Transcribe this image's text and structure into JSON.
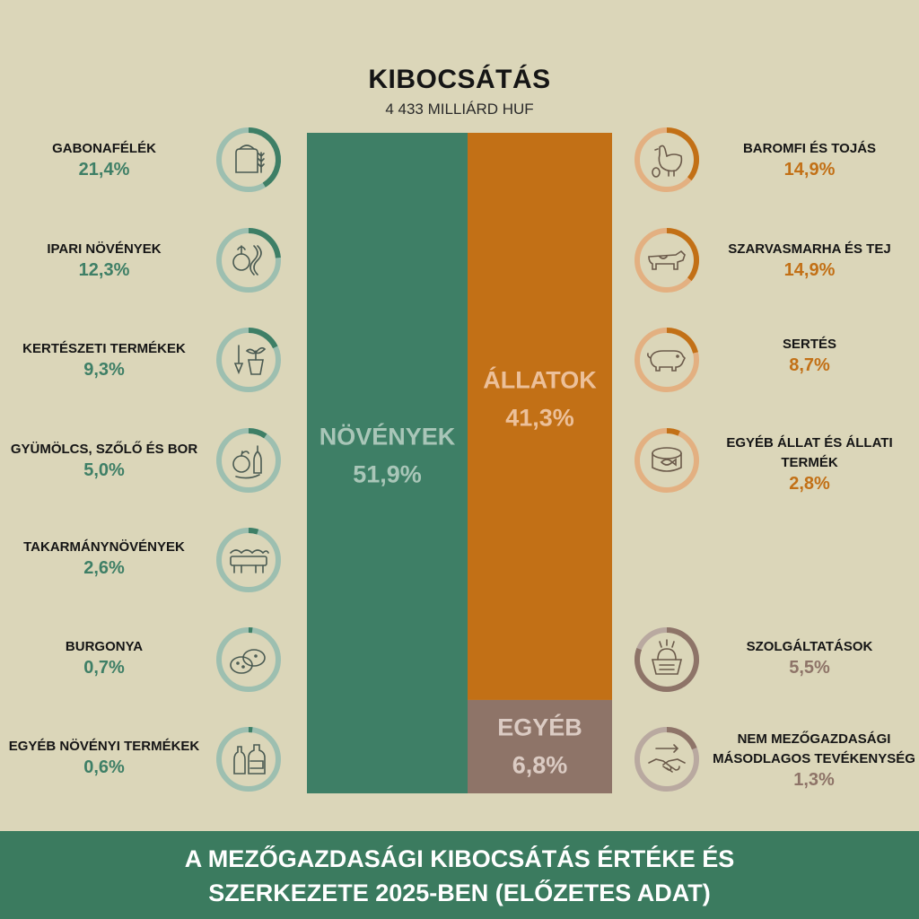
{
  "header": {
    "title": "KIBOCSÁTÁS",
    "subtitle": "4 433 MILLIÁRD HUF"
  },
  "chart_data": {
    "type": "bar",
    "title": "KIBOCSÁTÁS",
    "subtitle": "4 433 MILLIÁRD HUF",
    "stacked_100": true,
    "main_groups": [
      {
        "name": "NÖVÉNYEK",
        "value": 51.9,
        "value_label": "51,9%",
        "color": "#3e7f66",
        "text_color": "#a9c6b8"
      },
      {
        "name": "ÁLLATOK",
        "value": 41.3,
        "value_label": "41,3%",
        "color": "#c27016",
        "text_color": "#ecc09a"
      },
      {
        "name": "EGYÉB",
        "value": 6.8,
        "value_label": "6,8%",
        "color": "#8e7468",
        "text_color": "#dbcbc3"
      }
    ],
    "subcategories": [
      {
        "group": "NÖVÉNYEK",
        "name": "GABONAFÉLÉK",
        "value": 21.4,
        "value_label": "21,4%",
        "icon": "wheat-sack-icon"
      },
      {
        "group": "NÖVÉNYEK",
        "name": "IPARI NÖVÉNYEK",
        "value": 12.3,
        "value_label": "12,3%",
        "icon": "industrial-plants-icon"
      },
      {
        "group": "NÖVÉNYEK",
        "name": "KERTÉSZETI TERMÉKEK",
        "value": 9.3,
        "value_label": "9,3%",
        "icon": "seedling-pot-icon"
      },
      {
        "group": "NÖVÉNYEK",
        "name": "GYÜMÖLCS, SZŐLŐ ÉS BOR",
        "value": 5.0,
        "value_label": "5,0%",
        "icon": "fruit-wine-icon"
      },
      {
        "group": "NÖVÉNYEK",
        "name": "TAKARMÁNYNÖVÉNYEK",
        "value": 2.6,
        "value_label": "2,6%",
        "icon": "feed-trough-icon"
      },
      {
        "group": "NÖVÉNYEK",
        "name": "BURGONYA",
        "value": 0.7,
        "value_label": "0,7%",
        "icon": "potato-icon"
      },
      {
        "group": "NÖVÉNYEK",
        "name": "EGYÉB NÖVÉNYI TERMÉKEK",
        "value": 0.6,
        "value_label": "0,6%",
        "icon": "bottles-icon"
      },
      {
        "group": "ÁLLATOK",
        "name": "BAROMFI ÉS TOJÁS",
        "value": 14.9,
        "value_label": "14,9%",
        "icon": "chicken-egg-icon"
      },
      {
        "group": "ÁLLATOK",
        "name": "SZARVASMARHA ÉS TEJ",
        "value": 14.9,
        "value_label": "14,9%",
        "icon": "cow-icon"
      },
      {
        "group": "ÁLLATOK",
        "name": "SERTÉS",
        "value": 8.7,
        "value_label": "8,7%",
        "icon": "pig-icon"
      },
      {
        "group": "ÁLLATOK",
        "name": "EGYÉB ÁLLAT ÉS ÁLLATI TERMÉK",
        "value": 2.8,
        "value_label": "2,8%",
        "icon": "fish-can-icon"
      },
      {
        "group": "EGYÉB",
        "name": "SZOLGÁLTATÁSOK",
        "value": 5.5,
        "value_label": "5,5%",
        "icon": "basket-icon"
      },
      {
        "group": "EGYÉB",
        "name": "NEM MEZŐGAZDASÁGI MÁSODLAGOS TEVÉKENYSÉG",
        "value": 1.3,
        "value_label": "1,3%",
        "icon": "handshake-icon"
      }
    ]
  },
  "labels": {
    "left": [
      {
        "name": "GABONAFÉLÉK",
        "pct": "21,4%"
      },
      {
        "name": "IPARI NÖVÉNYEK",
        "pct": "12,3%"
      },
      {
        "name": "KERTÉSZETI TERMÉKEK",
        "pct": "9,3%"
      },
      {
        "name": "GYÜMÖLCS, SZŐLŐ ÉS BOR",
        "pct": "5,0%"
      },
      {
        "name": "TAKARMÁNYNÖVÉNYEK",
        "pct": "2,6%"
      },
      {
        "name": "BURGONYA",
        "pct": "0,7%"
      },
      {
        "name": "EGYÉB NÖVÉNYI TERMÉKEK",
        "pct": "0,6%"
      }
    ],
    "right": [
      {
        "name": "BAROMFI ÉS TOJÁS",
        "pct": "14,9%"
      },
      {
        "name": "SZARVASMARHA ÉS TEJ",
        "pct": "14,9%"
      },
      {
        "name": "SERTÉS",
        "pct": "8,7%"
      },
      {
        "name1": "EGYÉB ÁLLAT ÉS ÁLLATI",
        "name2": "TERMÉK",
        "pct": "2,8%"
      },
      {
        "name": "SZOLGÁLTATÁSOK",
        "pct": "5,5%"
      },
      {
        "name1": "NEM MEZŐGAZDASÁGI",
        "name2": "MÁSODLAGOS TEVÉKENYSÉG",
        "pct": "1,3%"
      }
    ]
  },
  "colors": {
    "background": "#dbd6b9",
    "plants_text": "#3e7f66",
    "animals_text": "#c27016",
    "other_text": "#8e7468",
    "plants_ring": "#9dbfb0",
    "animals_ring": "#e3b081",
    "other_ring": "#b9a9a0"
  },
  "footer": {
    "line1": "A MEZŐGAZDASÁGI KIBOCSÁTÁS ÉRTÉKE ÉS",
    "line2": "SZERKEZETE 2025-BEN (ELŐZETES ADAT)"
  }
}
